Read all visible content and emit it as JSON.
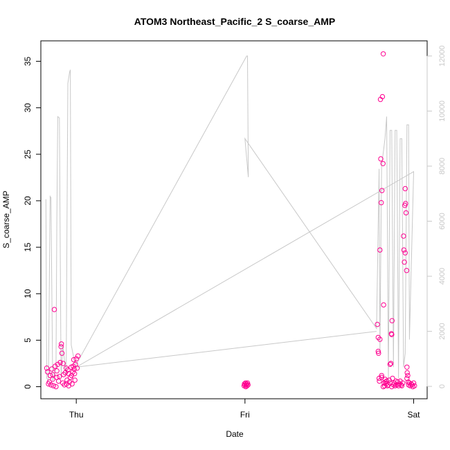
{
  "chart_data": {
    "type": "scatter",
    "title": "ATOM3 Northeast_Pacific_2 S_coarse_AMP",
    "xlabel": "Date",
    "ylabel": "S_coarse_AMP",
    "x_ticks": [
      "Thu",
      "Fri",
      "Sat"
    ],
    "xlim": [
      -0.21,
      2.08
    ],
    "ylim": [
      -1.3,
      37.2
    ],
    "y_ticks": [
      0,
      5,
      10,
      15,
      20,
      25,
      30,
      35
    ],
    "y2lim": [
      -450,
      12550
    ],
    "y2_ticks": [
      0,
      2000,
      4000,
      6000,
      8000,
      10000,
      12000
    ],
    "grid": false,
    "legend": "none",
    "colors": {
      "points": "#ff0090",
      "line": "#c8c8c8",
      "axis": "#000000",
      "axis2": "#c8c8c8"
    },
    "series": [
      {
        "type": "points",
        "x_units": "days after Thursday 00:00",
        "points": [
          [
            -0.175,
            2.0
          ],
          [
            -0.17,
            1.6
          ],
          [
            -0.165,
            0.3
          ],
          [
            -0.16,
            0.5
          ],
          [
            -0.155,
            1.2
          ],
          [
            -0.15,
            0.2
          ],
          [
            -0.145,
            1.9
          ],
          [
            -0.14,
            0.8
          ],
          [
            -0.135,
            0.1
          ],
          [
            -0.13,
            8.3
          ],
          [
            -0.125,
            2.2
          ],
          [
            -0.12,
            0.0
          ],
          [
            -0.115,
            1.7
          ],
          [
            -0.11,
            2.4
          ],
          [
            -0.105,
            0.6
          ],
          [
            -0.1,
            1.1
          ],
          [
            -0.095,
            2.6
          ],
          [
            -0.09,
            4.3
          ],
          [
            -0.088,
            4.6
          ],
          [
            -0.085,
            3.6
          ],
          [
            -0.08,
            0.4
          ],
          [
            -0.078,
            2.5
          ],
          [
            -0.075,
            1.3
          ],
          [
            -0.07,
            0.2
          ],
          [
            -0.065,
            1.5
          ],
          [
            -0.06,
            2.0
          ],
          [
            -0.058,
            0.3
          ],
          [
            -0.055,
            0.7
          ],
          [
            -0.05,
            1.8
          ],
          [
            -0.045,
            0.1
          ],
          [
            -0.04,
            0.5
          ],
          [
            -0.035,
            1.0
          ],
          [
            -0.03,
            2.1
          ],
          [
            -0.028,
            1.2
          ],
          [
            -0.025,
            0.3
          ],
          [
            -0.02,
            1.6
          ],
          [
            -0.018,
            2.2
          ],
          [
            -0.015,
            2.9
          ],
          [
            -0.012,
            1.9
          ],
          [
            -0.01,
            1.4
          ],
          [
            -0.008,
            0.7
          ],
          [
            -0.005,
            2.4
          ],
          [
            0.0,
            3.0
          ],
          [
            0.01,
            3.3
          ],
          [
            0.005,
            2.0
          ],
          [
            -0.045,
            1.4
          ],
          [
            -0.14,
            1.3
          ],
          [
            -0.115,
            1.0
          ],
          [
            0.995,
            0.1
          ],
          [
            0.997,
            0.3
          ],
          [
            1.0,
            0.2
          ],
          [
            1.003,
            0.4
          ],
          [
            1.005,
            0.0
          ],
          [
            1.007,
            0.2
          ],
          [
            1.01,
            0.3
          ],
          [
            1.012,
            0.1
          ],
          [
            1.015,
            0.4
          ],
          [
            1.018,
            0.2
          ],
          [
            1.785,
            6.7
          ],
          [
            1.79,
            3.8
          ],
          [
            1.792,
            3.6
          ],
          [
            1.795,
            0.9
          ],
          [
            1.797,
            0.6
          ],
          [
            1.8,
            14.7
          ],
          [
            1.803,
            30.9
          ],
          [
            1.805,
            24.5
          ],
          [
            1.808,
            19.8
          ],
          [
            1.81,
            1.2
          ],
          [
            1.812,
            21.1
          ],
          [
            1.815,
            31.2
          ],
          [
            1.818,
            24.0
          ],
          [
            1.82,
            35.8
          ],
          [
            1.822,
            8.8
          ],
          [
            1.825,
            0.4
          ],
          [
            1.828,
            0.1
          ],
          [
            1.83,
            0.8
          ],
          [
            1.833,
            0.5
          ],
          [
            1.836,
            0.3
          ],
          [
            1.84,
            0.6
          ],
          [
            1.845,
            0.1
          ],
          [
            1.85,
            0.2
          ],
          [
            1.855,
            0.7
          ],
          [
            1.86,
            0.4
          ],
          [
            1.865,
            2.5
          ],
          [
            1.868,
            5.7
          ],
          [
            1.87,
            5.6
          ],
          [
            1.872,
            7.1
          ],
          [
            1.875,
            0.9
          ],
          [
            1.88,
            0.2
          ],
          [
            1.885,
            0.4
          ],
          [
            1.89,
            0.1
          ],
          [
            1.895,
            0.6
          ],
          [
            1.9,
            0.2
          ],
          [
            1.905,
            0.5
          ],
          [
            1.91,
            0.1
          ],
          [
            1.915,
            0.3
          ],
          [
            1.92,
            0.6
          ],
          [
            1.925,
            0.2
          ],
          [
            1.93,
            0.1
          ],
          [
            1.935,
            0.4
          ],
          [
            1.94,
            16.2
          ],
          [
            1.942,
            14.7
          ],
          [
            1.945,
            13.4
          ],
          [
            1.948,
            19.5
          ],
          [
            1.95,
            21.3
          ],
          [
            1.952,
            19.7
          ],
          [
            1.955,
            18.7
          ],
          [
            1.958,
            12.5
          ],
          [
            1.96,
            2.1
          ],
          [
            1.962,
            1.5
          ],
          [
            1.965,
            1.2
          ],
          [
            1.968,
            0.5
          ],
          [
            1.97,
            0.2
          ],
          [
            1.975,
            0.4
          ],
          [
            1.98,
            0.1
          ],
          [
            1.985,
            0.3
          ],
          [
            1.99,
            0.2
          ],
          [
            1.995,
            0.0
          ],
          [
            2.0,
            0.4
          ],
          [
            2.005,
            0.1
          ],
          [
            1.79,
            5.3
          ],
          [
            1.8,
            5.1
          ],
          [
            1.81,
            1.0
          ],
          [
            1.82,
            0.0
          ],
          [
            1.86,
            2.4
          ],
          [
            1.87,
            0.0
          ],
          [
            1.95,
            14.4
          ],
          [
            1.96,
            0.9
          ]
        ]
      },
      {
        "type": "line",
        "axis": "right",
        "x_units": "days after Thursday 00:00",
        "points": [
          [
            -0.18,
            6800
          ],
          [
            -0.175,
            300
          ],
          [
            -0.165,
            200
          ],
          [
            -0.155,
            6900
          ],
          [
            -0.15,
            6850
          ],
          [
            -0.14,
            200
          ],
          [
            -0.12,
            700
          ],
          [
            -0.115,
            6000
          ],
          [
            -0.11,
            9800
          ],
          [
            -0.1,
            9750
          ],
          [
            -0.09,
            300
          ],
          [
            -0.08,
            1500
          ],
          [
            -0.06,
            400
          ],
          [
            -0.055,
            6000
          ],
          [
            -0.05,
            11000
          ],
          [
            -0.04,
            11400
          ],
          [
            -0.035,
            11500
          ],
          [
            -0.03,
            1500
          ],
          [
            -0.01,
            900
          ],
          [
            0.0,
            800
          ],
          [
            1.01,
            12000
          ],
          [
            1.015,
            12000
          ],
          [
            1.02,
            7600
          ],
          [
            1.0,
            9000
          ],
          [
            1.78,
            2100
          ],
          [
            1.795,
            7900
          ],
          [
            1.8,
            1200
          ],
          [
            1.81,
            8000
          ],
          [
            1.83,
            9000
          ],
          [
            1.84,
            9800
          ],
          [
            1.85,
            200
          ],
          [
            1.86,
            9300
          ],
          [
            1.87,
            9300
          ],
          [
            1.88,
            700
          ],
          [
            1.89,
            9300
          ],
          [
            1.9,
            9300
          ],
          [
            1.91,
            300
          ],
          [
            1.92,
            9000
          ],
          [
            1.93,
            9000
          ],
          [
            1.94,
            700
          ],
          [
            1.95,
            1200
          ],
          [
            1.96,
            9500
          ],
          [
            1.97,
            9500
          ],
          [
            1.975,
            1700
          ],
          [
            2.0,
            7800
          ],
          [
            0.0,
            700
          ],
          [
            1.78,
            2000
          ]
        ]
      }
    ]
  }
}
